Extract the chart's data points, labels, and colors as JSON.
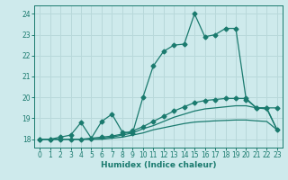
{
  "xlabel": "Humidex (Indice chaleur)",
  "xlim": [
    -0.5,
    23.5
  ],
  "ylim": [
    17.6,
    24.4
  ],
  "yticks": [
    18,
    19,
    20,
    21,
    22,
    23,
    24
  ],
  "xticks": [
    0,
    1,
    2,
    3,
    4,
    5,
    6,
    7,
    8,
    9,
    10,
    11,
    12,
    13,
    14,
    15,
    16,
    17,
    18,
    19,
    20,
    21,
    22,
    23
  ],
  "bg_color": "#ceeaec",
  "grid_color": "#b8d8da",
  "line_color": "#1a7a6e",
  "line1_y": [
    18.0,
    18.0,
    18.1,
    18.2,
    18.8,
    18.05,
    18.85,
    19.2,
    18.35,
    18.3,
    20.0,
    21.5,
    22.2,
    22.5,
    22.55,
    24.0,
    22.9,
    23.0,
    23.3,
    23.3,
    19.9,
    19.5,
    19.5,
    19.5
  ],
  "line2_y": [
    18.0,
    18.0,
    18.0,
    18.0,
    18.0,
    18.05,
    18.1,
    18.15,
    18.25,
    18.4,
    18.6,
    18.85,
    19.1,
    19.35,
    19.55,
    19.75,
    19.85,
    19.9,
    19.95,
    19.95,
    19.95,
    19.5,
    19.5,
    18.45
  ],
  "line3_y": [
    18.0,
    18.0,
    18.0,
    18.0,
    18.0,
    18.0,
    18.05,
    18.1,
    18.2,
    18.3,
    18.5,
    18.65,
    18.85,
    19.05,
    19.2,
    19.35,
    19.45,
    19.5,
    19.55,
    19.6,
    19.6,
    19.5,
    19.45,
    18.45
  ],
  "line4_y": [
    18.0,
    18.0,
    18.0,
    18.0,
    18.0,
    18.0,
    18.0,
    18.05,
    18.1,
    18.2,
    18.3,
    18.45,
    18.55,
    18.65,
    18.75,
    18.82,
    18.85,
    18.88,
    18.9,
    18.92,
    18.92,
    18.88,
    18.85,
    18.45
  ]
}
